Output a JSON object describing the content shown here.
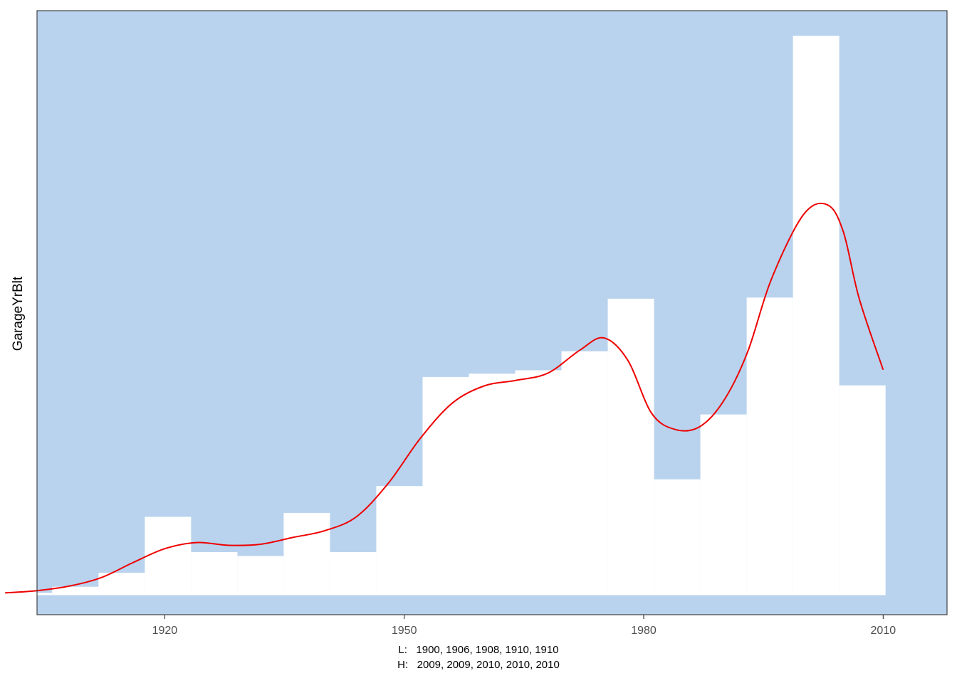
{
  "chart_data": {
    "type": "bar",
    "ylabel": "GarageYrBlt",
    "xlim": [
      1904,
      2018
    ],
    "ylim": [
      -0.035,
      1.045
    ],
    "x_ticks": [
      1920,
      1950,
      1980,
      2010
    ],
    "bins": [
      {
        "x0": 1900.1,
        "x1": 1905.9,
        "value": 0.004
      },
      {
        "x0": 1905.9,
        "x1": 1911.7,
        "value": 0.015
      },
      {
        "x0": 1911.7,
        "x1": 1917.5,
        "value": 0.04
      },
      {
        "x0": 1917.5,
        "x1": 1923.3,
        "value": 0.14
      },
      {
        "x0": 1923.3,
        "x1": 1929.1,
        "value": 0.077
      },
      {
        "x0": 1929.1,
        "x1": 1934.9,
        "value": 0.07
      },
      {
        "x0": 1934.9,
        "x1": 1940.7,
        "value": 0.147
      },
      {
        "x0": 1940.7,
        "x1": 1946.5,
        "value": 0.077
      },
      {
        "x0": 1946.5,
        "x1": 1952.3,
        "value": 0.195
      },
      {
        "x0": 1952.3,
        "x1": 1958.1,
        "value": 0.39
      },
      {
        "x0": 1958.1,
        "x1": 1963.9,
        "value": 0.396
      },
      {
        "x0": 1963.9,
        "x1": 1969.7,
        "value": 0.402
      },
      {
        "x0": 1969.7,
        "x1": 1975.5,
        "value": 0.436
      },
      {
        "x0": 1975.5,
        "x1": 1981.3,
        "value": 0.53
      },
      {
        "x0": 1981.3,
        "x1": 1987.1,
        "value": 0.207
      },
      {
        "x0": 1987.1,
        "x1": 1992.9,
        "value": 0.323
      },
      {
        "x0": 1992.9,
        "x1": 1998.7,
        "value": 0.532
      },
      {
        "x0": 1998.7,
        "x1": 2004.5,
        "value": 1.0
      },
      {
        "x0": 2004.5,
        "x1": 2010.3,
        "value": 0.375
      }
    ],
    "density_curve": {
      "x": [
        1900,
        1904,
        1908,
        1912,
        1916,
        1920,
        1924,
        1928,
        1932,
        1936,
        1940,
        1944,
        1948,
        1952,
        1956,
        1960,
        1964,
        1968,
        1972,
        1975,
        1978,
        1981,
        1984,
        1987,
        1990,
        1993,
        1996,
        2000,
        2003,
        2005,
        2007,
        2010
      ],
      "y": [
        0.004,
        0.008,
        0.016,
        0.031,
        0.058,
        0.083,
        0.094,
        0.089,
        0.091,
        0.103,
        0.115,
        0.14,
        0.2,
        0.28,
        0.343,
        0.374,
        0.384,
        0.397,
        0.438,
        0.46,
        0.42,
        0.325,
        0.296,
        0.301,
        0.347,
        0.434,
        0.565,
        0.68,
        0.698,
        0.65,
        0.53,
        0.403
      ]
    },
    "colors": {
      "panel_background": "#b9d3ee",
      "bars": "#ffffff",
      "curve": "#ee0000",
      "border": "#333333"
    },
    "caption_low": "L:   1900, 1906, 1908, 1910, 1910",
    "caption_high": "H:   2009, 2009, 2010, 2010, 2010"
  }
}
